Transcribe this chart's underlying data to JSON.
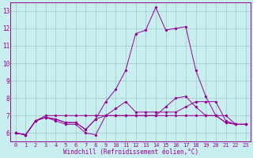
{
  "title": "",
  "xlabel": "Windchill (Refroidissement éolien,°C)",
  "ylabel": "",
  "bg_color": "#c8eef0",
  "grid_color": "#a0c8c8",
  "line_color": "#990099",
  "xlim": [
    -0.5,
    23.5
  ],
  "ylim": [
    5.5,
    13.5
  ],
  "yticks": [
    6,
    7,
    8,
    9,
    10,
    11,
    12,
    13
  ],
  "xticks": [
    0,
    1,
    2,
    3,
    4,
    5,
    6,
    7,
    8,
    9,
    10,
    11,
    12,
    13,
    14,
    15,
    16,
    17,
    18,
    19,
    20,
    21,
    22,
    23
  ],
  "series": [
    [
      6.0,
      5.9,
      6.7,
      6.9,
      6.7,
      6.5,
      6.5,
      6.0,
      5.9,
      7.0,
      7.0,
      7.0,
      7.0,
      7.0,
      7.0,
      7.0,
      7.0,
      7.0,
      7.0,
      7.0,
      7.0,
      6.6,
      6.5,
      6.5
    ],
    [
      6.0,
      5.9,
      6.7,
      6.9,
      6.8,
      6.6,
      6.6,
      6.2,
      6.8,
      7.8,
      8.5,
      9.6,
      11.7,
      11.9,
      13.2,
      11.9,
      12.0,
      12.1,
      9.6,
      8.1,
      7.0,
      6.6,
      6.5,
      6.5
    ],
    [
      6.0,
      5.9,
      6.7,
      6.9,
      6.8,
      6.6,
      6.6,
      6.2,
      6.8,
      7.0,
      7.4,
      7.8,
      7.2,
      7.2,
      7.2,
      7.2,
      7.2,
      7.5,
      7.8,
      7.8,
      7.8,
      6.7,
      6.5,
      6.5
    ],
    [
      6.0,
      5.9,
      6.7,
      7.0,
      7.0,
      7.0,
      7.0,
      7.0,
      7.0,
      7.0,
      7.0,
      7.0,
      7.0,
      7.0,
      7.0,
      7.5,
      8.0,
      8.1,
      7.5,
      7.0,
      7.0,
      7.0,
      6.5,
      6.5
    ]
  ],
  "tick_fontsize": 5.0,
  "xlabel_fontsize": 5.5
}
